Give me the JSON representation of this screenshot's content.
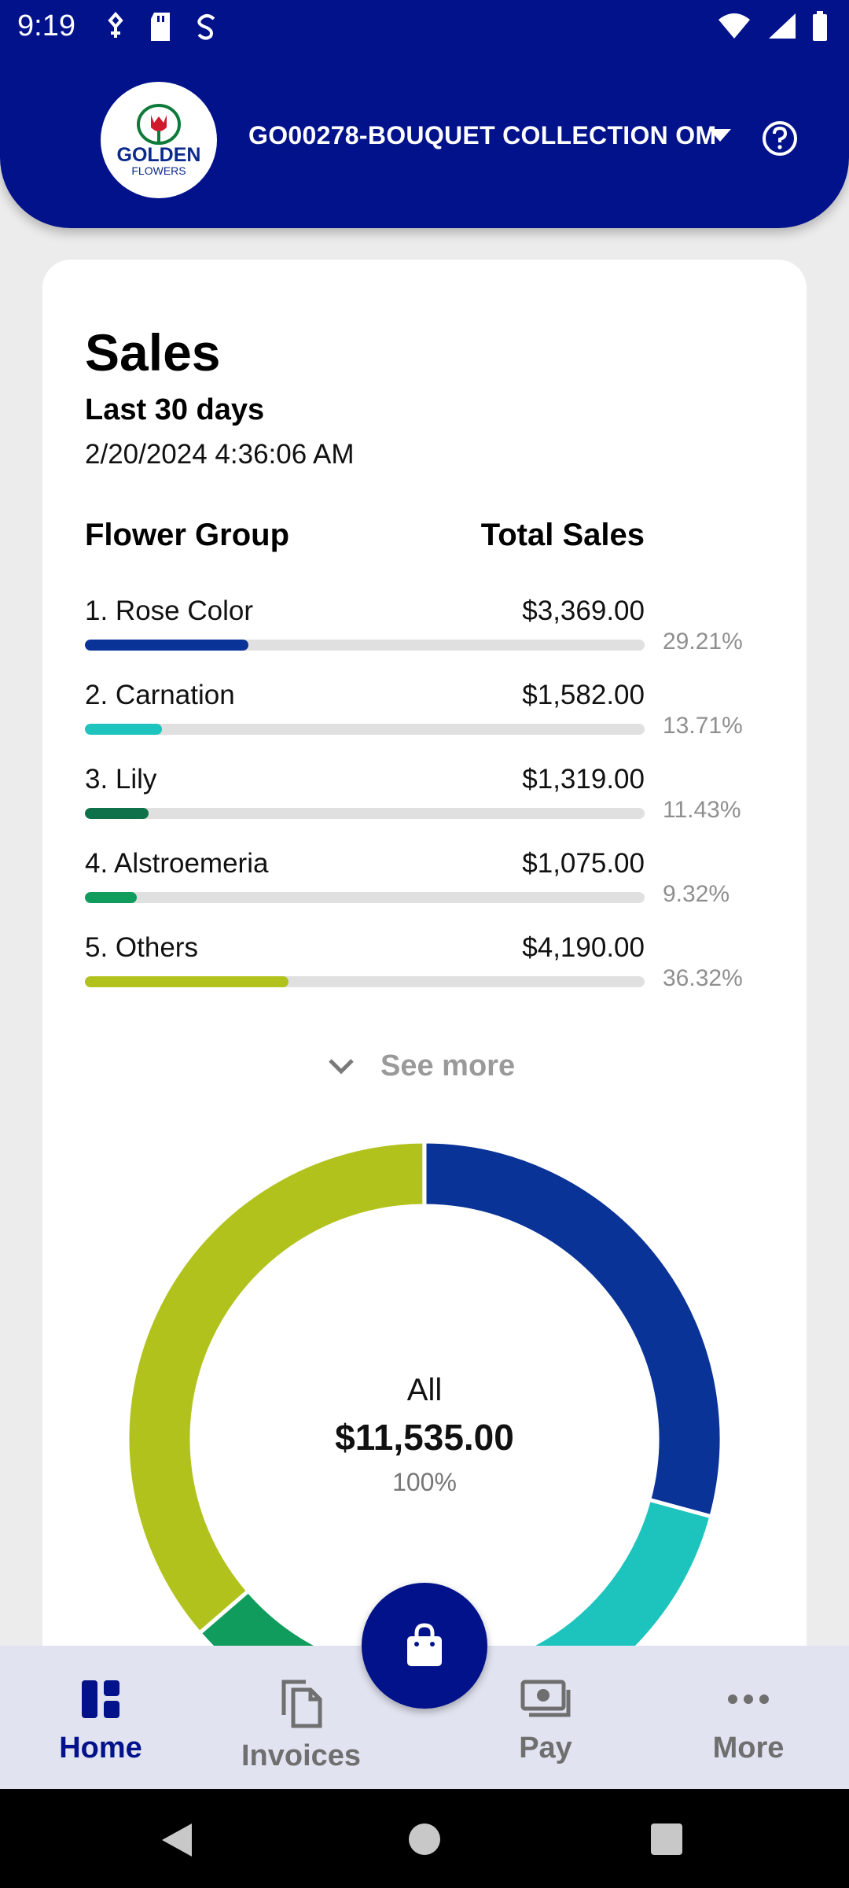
{
  "status_bar": {
    "time": "9:19"
  },
  "header": {
    "logo_line1": "GOLDEN",
    "logo_line2": "FLOWERS",
    "account_name": "GO00278-BOUQUET COLLECTION OM"
  },
  "sales": {
    "title": "Sales",
    "period": "Last 30 days",
    "timestamp": "2/20/2024 4:36:06 AM",
    "col_group": "Flower Group",
    "col_total": "Total Sales",
    "rows": [
      {
        "label": "1. Rose Color",
        "value": "$3,369.00",
        "percent": "29.21%",
        "fraction": 0.2921,
        "color": "#0a3397"
      },
      {
        "label": "2. Carnation",
        "value": "$1,582.00",
        "percent": "13.71%",
        "fraction": 0.1371,
        "color": "#1cc4bd"
      },
      {
        "label": "3. Lily",
        "value": "$1,319.00",
        "percent": "11.43%",
        "fraction": 0.1143,
        "color": "#0e7149"
      },
      {
        "label": "4. Alstroemeria",
        "value": "$1,075.00",
        "percent": "9.32%",
        "fraction": 0.0932,
        "color": "#0f9c5c"
      },
      {
        "label": "5. Others",
        "value": "$4,190.00",
        "percent": "36.32%",
        "fraction": 0.3632,
        "color": "#b2c21c"
      }
    ],
    "see_more": "See more",
    "donut": {
      "label": "All",
      "total": "$11,535.00",
      "percent": "100%"
    }
  },
  "nav": {
    "home": "Home",
    "invoices": "Invoices",
    "pay": "Pay",
    "more": "More"
  },
  "icons": {
    "help": "help-circle-icon",
    "dropdown": "caret-down-icon",
    "fab": "shopping-bag-icon"
  },
  "colors": {
    "brand": "#02128a",
    "nav_bg": "#e1e3f0"
  }
}
